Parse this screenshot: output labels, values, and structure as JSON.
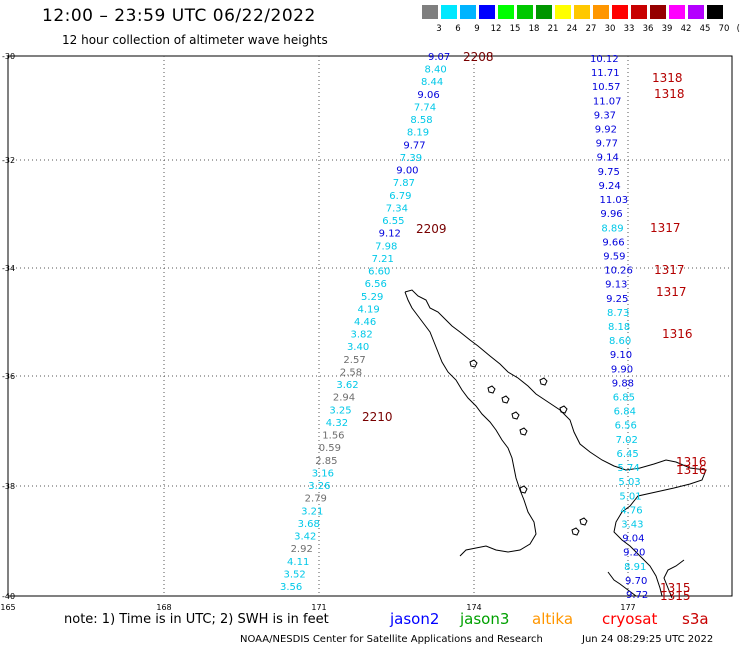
{
  "header": {
    "title": "12:00 – 23:59 UTC 06/22/2022",
    "subtitle": "12 hour collection of altimeter wave heights"
  },
  "color_scale": {
    "labels": [
      "3",
      "6",
      "9",
      "12",
      "15",
      "18",
      "21",
      "24",
      "27",
      "30",
      "33",
      "36",
      "39",
      "42",
      "45",
      "70",
      "(ft)"
    ],
    "colors": [
      "#7f7f7f",
      "#00e8ff",
      "#00b4ff",
      "#0000ff",
      "#00ff00",
      "#00c800",
      "#009600",
      "#ffff00",
      "#ffc800",
      "#ff9600",
      "#ff0000",
      "#c80000",
      "#960000",
      "#ff00ff",
      "#b400ff",
      "#000000"
    ]
  },
  "axes": {
    "lat_labels": [
      "-30",
      "-32",
      "-34",
      "-36",
      "-38",
      "-40"
    ],
    "lon_labels": [
      "165",
      "168",
      "171",
      "174",
      "177"
    ]
  },
  "track_colors": {
    "cyan": "#00c8e8",
    "blue": "#0000dc",
    "gray": "#6e6e6e",
    "time": "#b40000",
    "time_dark": "#780000"
  },
  "tracks": {
    "track_2208": {
      "time_labels": [
        "2208",
        "2209",
        "2210"
      ],
      "values": [
        "9.07",
        "8.40",
        "8.44",
        "9.06",
        "7.74",
        "8.58",
        "8.19",
        "9.77",
        "7.39",
        "9.00",
        "7.87",
        "6.79",
        "7.34",
        "6.55",
        "9.12",
        "7.98",
        "7.21",
        "6.60",
        "6.56",
        "5.29",
        "4.19",
        "4.46",
        "3.82",
        "3.40",
        "2.57",
        "2.58",
        "3.62",
        "2.94",
        "3.25",
        "4.32",
        "1.56",
        "0.59",
        "2.85",
        "3.16",
        "3.26",
        "2.79",
        "3.21",
        "3.68",
        "3.42",
        "2.92",
        "4.11",
        "3.52",
        "3.56"
      ]
    },
    "track_1318": {
      "time_labels": [
        "1318",
        "1318",
        "1317",
        "1317",
        "1317",
        "1316",
        "1316",
        "1316",
        "1315",
        "1315"
      ],
      "values": [
        "10.12",
        "11.71",
        "10.57",
        "11.07",
        "9.37",
        "9.92",
        "9.77",
        "9.14",
        "9.75",
        "9.24",
        "11.03",
        "9.96",
        "8.89",
        "9.66",
        "9.59",
        "10.26",
        "9.13",
        "9.25",
        "8.73",
        "8.18",
        "8.60",
        "9.10",
        "9.90",
        "9.88",
        "6.85",
        "6.84",
        "6.56",
        "7.02",
        "6.45",
        "5.74",
        "5.03",
        "5.01",
        "4.76",
        "3.43",
        "9.04",
        "9.20",
        "8.91",
        "9.70",
        "9.72"
      ]
    }
  },
  "footer": {
    "note": "note: 1) Time is in UTC; 2) SWH is in feet",
    "missions": [
      "jason2",
      "jason3",
      "altika",
      "cryosat",
      "s3a"
    ],
    "mission_colors": [
      "#0000ff",
      "#00a000",
      "#ff9600",
      "#ff0000",
      "#c80000"
    ],
    "credit": "NOAA/NESDIS Center for Satellite Applications and Research",
    "timestamp": "Jun 24 08:29:25 UTC 2022"
  }
}
